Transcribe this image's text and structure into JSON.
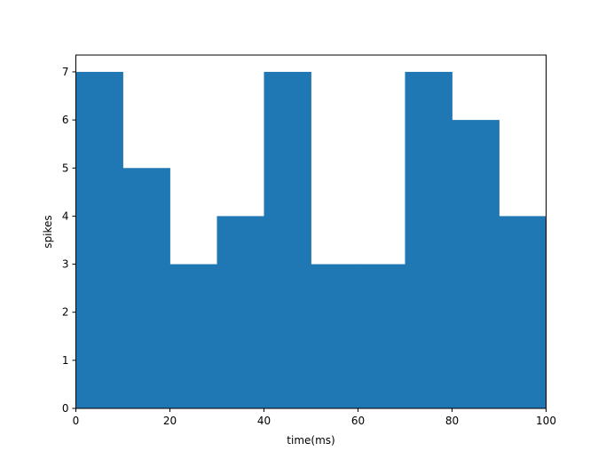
{
  "chart_data": {
    "type": "bar",
    "bin_edges": [
      0,
      10,
      20,
      30,
      40,
      50,
      60,
      70,
      80,
      90,
      100
    ],
    "values": [
      7,
      5,
      3,
      4,
      7,
      3,
      3,
      7,
      6,
      4
    ],
    "xlabel": "time(ms)",
    "ylabel": "spikes",
    "xlim": [
      0,
      100
    ],
    "ylim": [
      0,
      7.35
    ],
    "x_ticks": [
      0,
      20,
      40,
      60,
      80,
      100
    ],
    "y_ticks": [
      0,
      1,
      2,
      3,
      4,
      5,
      6,
      7
    ],
    "grid": false,
    "bar_color": "#1f77b4"
  }
}
